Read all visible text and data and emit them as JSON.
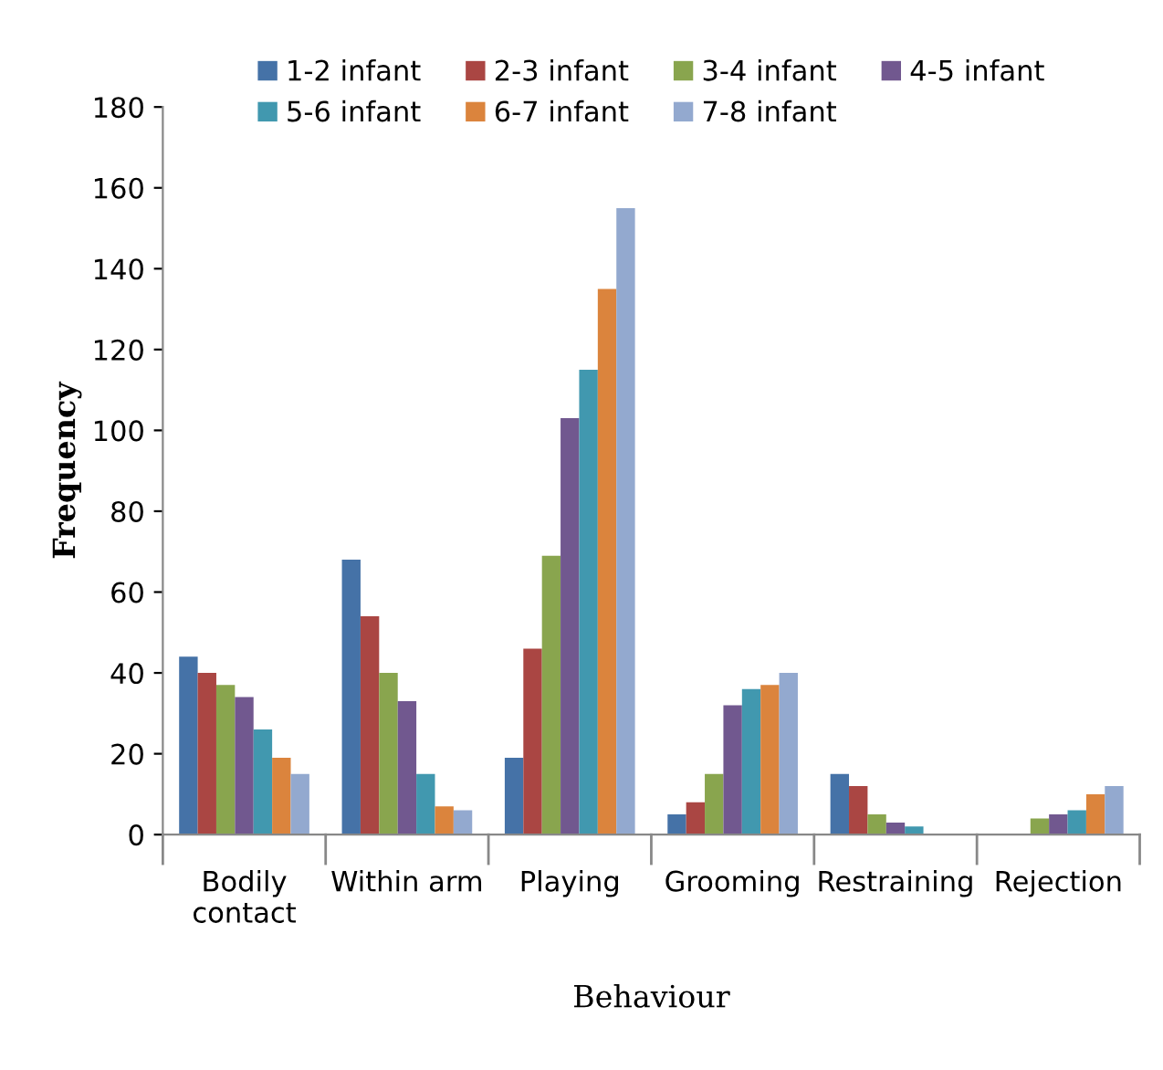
{
  "chart_data": {
    "type": "bar",
    "xlabel": "Behaviour",
    "ylabel": "Frequency",
    "categories": [
      "Bodily\ncontact",
      "Within arm",
      "Playing",
      "Grooming",
      "Restraining",
      "Rejection"
    ],
    "series": [
      {
        "name": "1-2 infant",
        "color": "#4572a7",
        "values": [
          44,
          68,
          19,
          5,
          15,
          0
        ]
      },
      {
        "name": "2-3 infant",
        "color": "#aa4643",
        "values": [
          40,
          54,
          46,
          8,
          12,
          0
        ]
      },
      {
        "name": "3-4 infant",
        "color": "#89a54e",
        "values": [
          37,
          40,
          69,
          15,
          5,
          4
        ]
      },
      {
        "name": "4-5 infant",
        "color": "#71588f",
        "values": [
          34,
          33,
          103,
          32,
          3,
          5
        ]
      },
      {
        "name": "5-6 infant",
        "color": "#4198af",
        "values": [
          26,
          15,
          115,
          36,
          2,
          6
        ]
      },
      {
        "name": "6-7 infant",
        "color": "#db843d",
        "values": [
          19,
          7,
          135,
          37,
          0,
          10
        ]
      },
      {
        "name": "7-8 infant",
        "color": "#93a9cf",
        "values": [
          15,
          6,
          155,
          40,
          0,
          12
        ]
      }
    ],
    "ylim": [
      0,
      180
    ],
    "yticks": [
      0,
      20,
      40,
      60,
      80,
      100,
      120,
      140,
      160,
      180
    ],
    "grid": false,
    "legend": "top"
  }
}
